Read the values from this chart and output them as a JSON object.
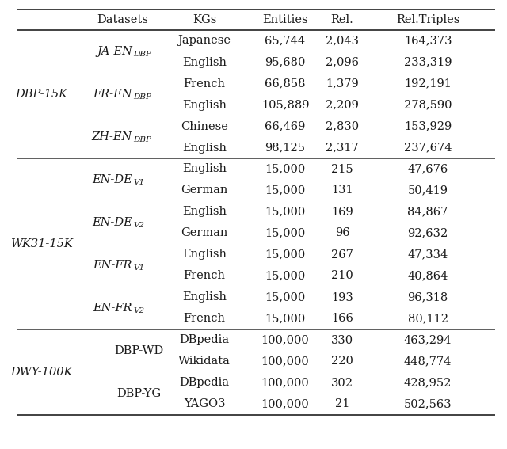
{
  "headers": [
    "Datasets",
    "KGs",
    "Entities",
    "Rel.",
    "Rel.Triples"
  ],
  "rows": [
    {
      "dataset": "DBP-15K",
      "subset": "JA-EN",
      "subset_sub": "DBP",
      "subset_sub_italic": true,
      "kg": "Japanese",
      "entities": "65,744",
      "rel": "2,043",
      "rel_triples": "164,373"
    },
    {
      "dataset": "",
      "subset": "",
      "subset_sub": "",
      "kg": "English",
      "entities": "95,680",
      "rel": "2,096",
      "rel_triples": "233,319"
    },
    {
      "dataset": "",
      "subset": "FR-EN",
      "subset_sub": "DBP",
      "subset_sub_italic": true,
      "kg": "French",
      "entities": "66,858",
      "rel": "1,379",
      "rel_triples": "192,191"
    },
    {
      "dataset": "",
      "subset": "",
      "subset_sub": "",
      "kg": "English",
      "entities": "105,889",
      "rel": "2,209",
      "rel_triples": "278,590"
    },
    {
      "dataset": "",
      "subset": "ZH-EN",
      "subset_sub": "DBP",
      "subset_sub_italic": true,
      "kg": "Chinese",
      "entities": "66,469",
      "rel": "2,830",
      "rel_triples": "153,929"
    },
    {
      "dataset": "",
      "subset": "",
      "subset_sub": "",
      "kg": "English",
      "entities": "98,125",
      "rel": "2,317",
      "rel_triples": "237,674"
    },
    {
      "dataset": "WK31-15K",
      "subset": "EN-DE",
      "subset_sub": "V1",
      "subset_sub_italic": true,
      "kg": "English",
      "entities": "15,000",
      "rel": "215",
      "rel_triples": "47,676"
    },
    {
      "dataset": "",
      "subset": "",
      "subset_sub": "",
      "kg": "German",
      "entities": "15,000",
      "rel": "131",
      "rel_triples": "50,419"
    },
    {
      "dataset": "",
      "subset": "EN-DE",
      "subset_sub": "V2",
      "subset_sub_italic": true,
      "kg": "English",
      "entities": "15,000",
      "rel": "169",
      "rel_triples": "84,867"
    },
    {
      "dataset": "",
      "subset": "",
      "subset_sub": "",
      "kg": "German",
      "entities": "15,000",
      "rel": "96",
      "rel_triples": "92,632"
    },
    {
      "dataset": "",
      "subset": "EN-FR",
      "subset_sub": "V1",
      "subset_sub_italic": true,
      "kg": "English",
      "entities": "15,000",
      "rel": "267",
      "rel_triples": "47,334"
    },
    {
      "dataset": "",
      "subset": "",
      "subset_sub": "",
      "kg": "French",
      "entities": "15,000",
      "rel": "210",
      "rel_triples": "40,864"
    },
    {
      "dataset": "",
      "subset": "EN-FR",
      "subset_sub": "V2",
      "subset_sub_italic": true,
      "kg": "English",
      "entities": "15,000",
      "rel": "193",
      "rel_triples": "96,318"
    },
    {
      "dataset": "",
      "subset": "",
      "subset_sub": "",
      "kg": "French",
      "entities": "15,000",
      "rel": "166",
      "rel_triples": "80,112"
    },
    {
      "dataset": "DWY-100K",
      "subset": "DBP-WD",
      "subset_sub": "",
      "subset_sub_italic": false,
      "kg": "DBpedia",
      "entities": "100,000",
      "rel": "330",
      "rel_triples": "463,294"
    },
    {
      "dataset": "",
      "subset": "",
      "subset_sub": "",
      "kg": "Wikidata",
      "entities": "100,000",
      "rel": "220",
      "rel_triples": "448,774"
    },
    {
      "dataset": "",
      "subset": "DBP-YG",
      "subset_sub": "",
      "subset_sub_italic": false,
      "kg": "DBpedia",
      "entities": "100,000",
      "rel": "302",
      "rel_triples": "428,952"
    },
    {
      "dataset": "",
      "subset": "",
      "subset_sub": "",
      "kg": "YAGO3",
      "entities": "100,000",
      "rel": "21",
      "rel_triples": "502,563"
    }
  ],
  "section_dividers_after": [
    5,
    13
  ],
  "dataset_spans": {
    "DBP-15K": [
      0,
      5
    ],
    "WK31-15K": [
      6,
      13
    ],
    "DWY-100K": [
      14,
      17
    ]
  },
  "subset_spans": [
    {
      "rows": [
        0,
        1
      ],
      "main": "JA-EN",
      "sub": "DBP",
      "italic": true
    },
    {
      "rows": [
        2,
        3
      ],
      "main": "FR-EN",
      "sub": "DBP",
      "italic": true
    },
    {
      "rows": [
        4,
        5
      ],
      "main": "ZH-EN",
      "sub": "DBP",
      "italic": true
    },
    {
      "rows": [
        6,
        7
      ],
      "main": "EN-DE",
      "sub": "V1",
      "italic": true
    },
    {
      "rows": [
        8,
        9
      ],
      "main": "EN-DE",
      "sub": "V2",
      "italic": true
    },
    {
      "rows": [
        10,
        11
      ],
      "main": "EN-FR",
      "sub": "V1",
      "italic": true
    },
    {
      "rows": [
        12,
        13
      ],
      "main": "EN-FR",
      "sub": "V2",
      "italic": true
    },
    {
      "rows": [
        14,
        15
      ],
      "main": "DBP-WD",
      "sub": "",
      "italic": false
    },
    {
      "rows": [
        16,
        17
      ],
      "main": "DBP-YG",
      "sub": "",
      "italic": false
    }
  ],
  "bg_color": "#ffffff",
  "text_color": "#1a1a1a",
  "line_color": "#333333",
  "font_size": 10.5,
  "fig_width": 6.4,
  "fig_height": 5.67
}
